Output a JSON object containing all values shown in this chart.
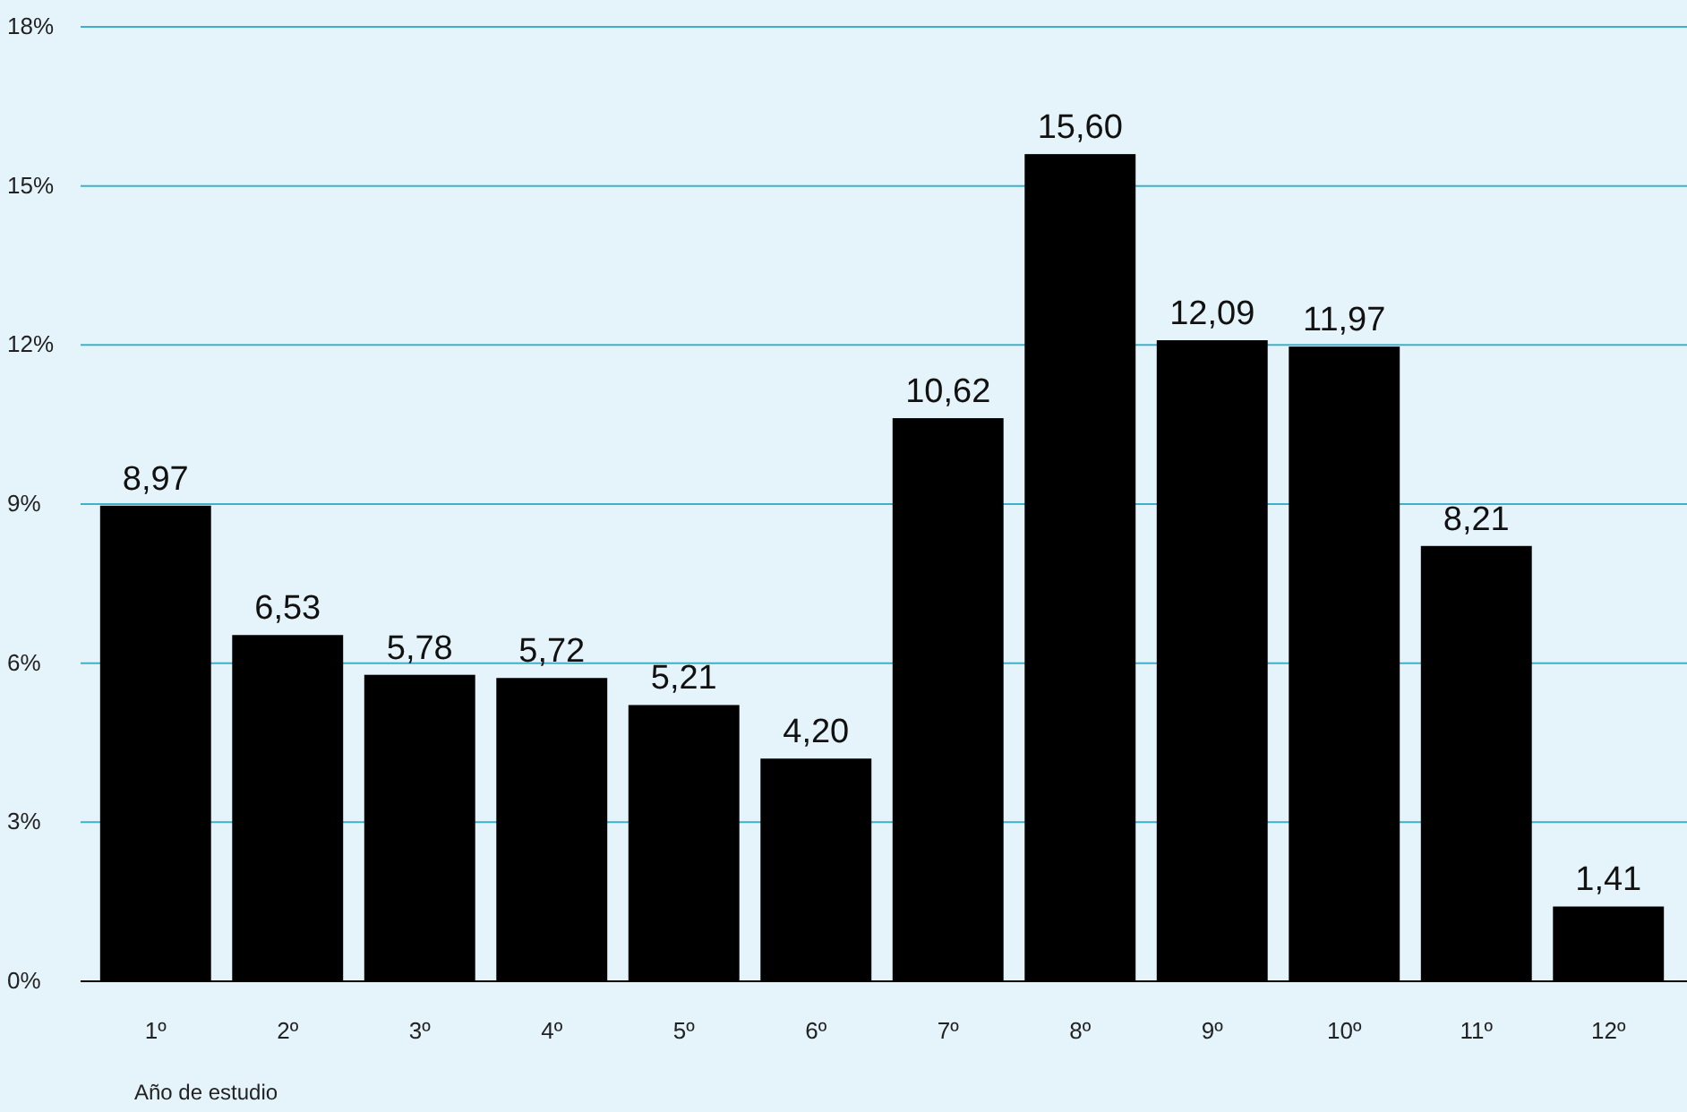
{
  "chart_data": {
    "type": "bar",
    "xlabel": "Año de estudio",
    "categories": [
      "1º",
      "2º",
      "3º",
      "4º",
      "5º",
      "6º",
      "7º",
      "8º",
      "9º",
      "10º",
      "11º",
      "12º"
    ],
    "values": [
      8.97,
      6.53,
      5.78,
      5.72,
      5.21,
      4.2,
      10.62,
      15.6,
      12.09,
      11.97,
      8.21,
      1.41
    ],
    "value_labels": [
      "8,97",
      "6,53",
      "5,78",
      "5,72",
      "5,21",
      "4,20",
      "10,62",
      "15,60",
      "12,09",
      "11,97",
      "8,21",
      "1,41"
    ],
    "color": "#000000",
    "ylim": [
      0,
      18
    ],
    "yticks": [
      {
        "value": 0,
        "label": "0%"
      },
      {
        "value": 3,
        "label": "3%"
      },
      {
        "value": 6,
        "label": "6%"
      },
      {
        "value": 9,
        "label": "9%"
      },
      {
        "value": 12,
        "label": "12%"
      },
      {
        "value": 15,
        "label": "15%"
      },
      {
        "value": 18,
        "label": "18%"
      }
    ],
    "grid": "y"
  }
}
